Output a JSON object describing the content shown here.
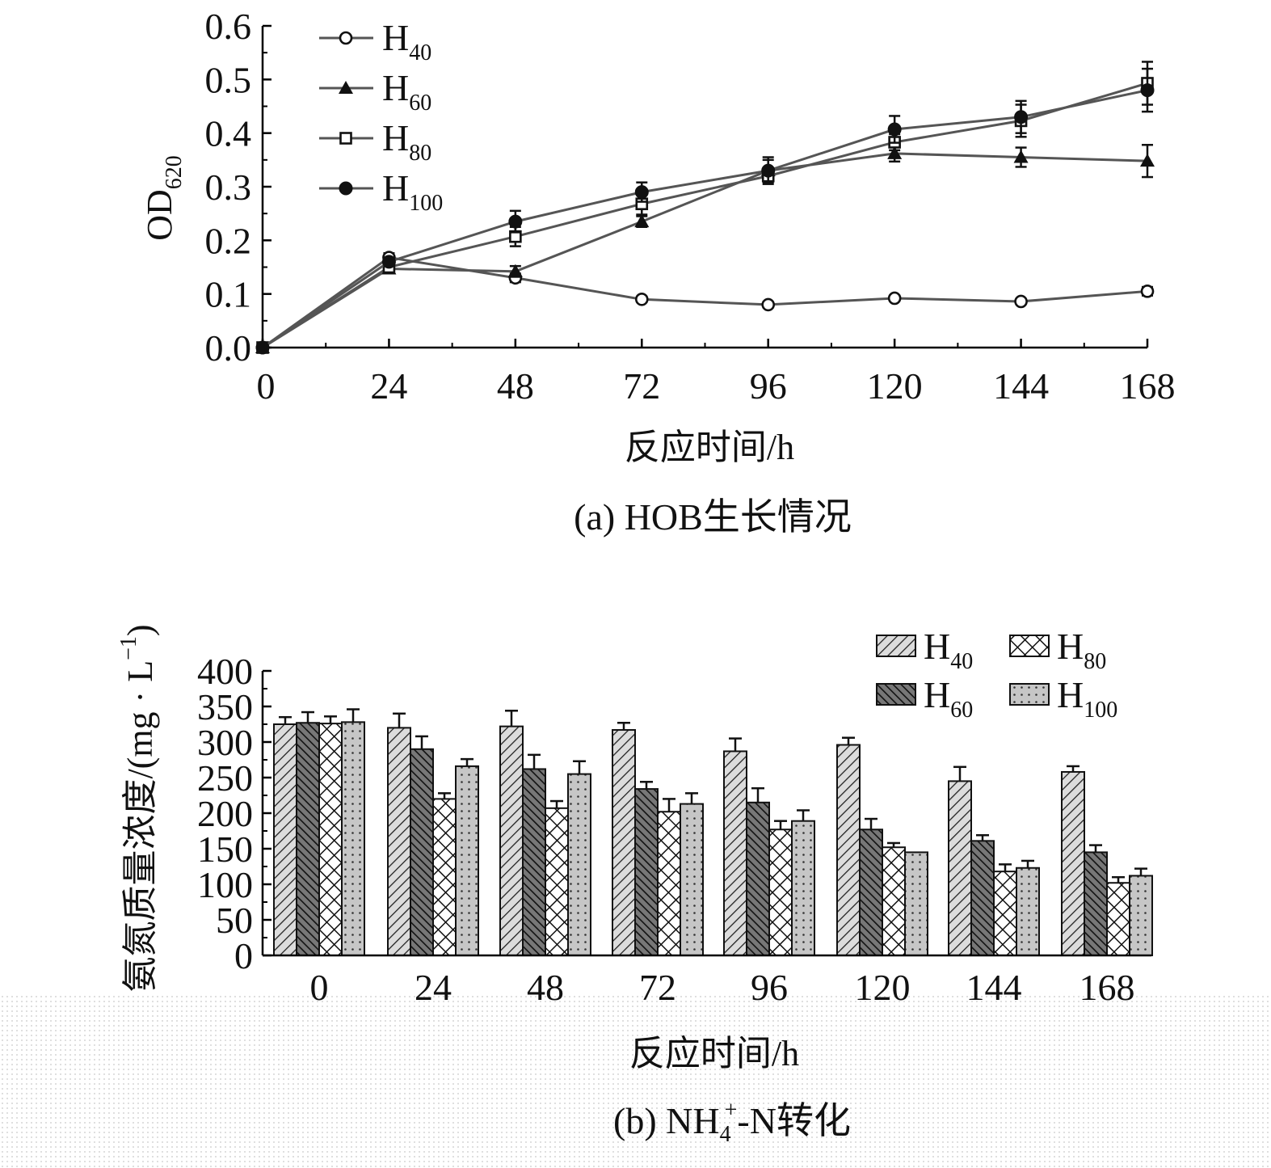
{
  "chart_data": [
    {
      "type": "line",
      "caption": "(a) HOB生长情况",
      "xlabel": "反应时间/h",
      "ylabel": "OD",
      "ylabel_sub": "620",
      "x": [
        0,
        24,
        48,
        72,
        96,
        120,
        144,
        168
      ],
      "xlim": [
        0,
        168
      ],
      "ylim": [
        0,
        0.6
      ],
      "y_ticks": [
        "0.0",
        "0.1",
        "0.2",
        "0.3",
        "0.4",
        "0.5",
        "0.6"
      ],
      "legend_position": "top-left",
      "grid": false,
      "series": [
        {
          "name": "H",
          "sub": "40",
          "marker": "open-circle",
          "values": [
            0,
            0.168,
            0.13,
            0.09,
            0.08,
            0.092,
            0.086,
            0.105
          ],
          "errors": [
            0,
            0.008,
            0.008,
            0.005,
            0.005,
            0.005,
            0.005,
            0.008
          ]
        },
        {
          "name": "H",
          "sub": "60",
          "marker": "filled-triangle",
          "values": [
            0,
            0.147,
            0.142,
            0.235,
            0.33,
            0.362,
            0.355,
            0.348
          ],
          "errors": [
            0,
            0.008,
            0.01,
            0.01,
            0.02,
            0.015,
            0.018,
            0.03
          ]
        },
        {
          "name": "H",
          "sub": "80",
          "marker": "open-square",
          "values": [
            0,
            0.15,
            0.207,
            0.268,
            0.32,
            0.383,
            0.423,
            0.493
          ],
          "errors": [
            0,
            0.008,
            0.018,
            0.02,
            0.012,
            0.015,
            0.03,
            0.04
          ]
        },
        {
          "name": "H",
          "sub": "100",
          "marker": "filled-circle",
          "values": [
            0,
            0.16,
            0.235,
            0.29,
            0.33,
            0.407,
            0.43,
            0.48
          ],
          "errors": [
            0,
            0.008,
            0.02,
            0.018,
            0.025,
            0.025,
            0.03,
            0.04
          ]
        }
      ]
    },
    {
      "type": "bar",
      "caption_prefix": "(b) NH",
      "caption_sub": "4",
      "caption_sup": "+",
      "caption_suffix": "-N转化",
      "xlabel": "反应时间/h",
      "ylabel": "氨氮质量浓度/(mg · L",
      "ylabel_sup": "−1",
      "ylabel_close": ")",
      "categories": [
        "0",
        "24",
        "48",
        "72",
        "96",
        "120",
        "144",
        "168"
      ],
      "ylim": [
        0,
        400
      ],
      "y_ticks": [
        "0",
        "50",
        "100",
        "150",
        "200",
        "250",
        "300",
        "350",
        "400"
      ],
      "legend_position": "top-right",
      "grid": false,
      "series": [
        {
          "name": "H",
          "sub": "40",
          "pattern": "light-hatch",
          "values": [
            325,
            320,
            322,
            317,
            287,
            296,
            245,
            258
          ],
          "errors": [
            10,
            20,
            22,
            10,
            18,
            10,
            20,
            8
          ]
        },
        {
          "name": "H",
          "sub": "60",
          "pattern": "dark-hatch",
          "values": [
            327,
            290,
            262,
            234,
            215,
            177,
            161,
            145
          ],
          "errors": [
            15,
            18,
            20,
            10,
            20,
            15,
            8,
            10
          ]
        },
        {
          "name": "H",
          "sub": "80",
          "pattern": "crosshatch",
          "values": [
            326,
            220,
            207,
            202,
            177,
            152,
            118,
            102
          ],
          "errors": [
            10,
            8,
            10,
            18,
            12,
            6,
            10,
            8
          ]
        },
        {
          "name": "H",
          "sub": "100",
          "pattern": "dots",
          "values": [
            328,
            266,
            255,
            213,
            189,
            145,
            123,
            112
          ],
          "errors": [
            18,
            10,
            18,
            15,
            15,
            0,
            10,
            10
          ]
        }
      ]
    }
  ]
}
